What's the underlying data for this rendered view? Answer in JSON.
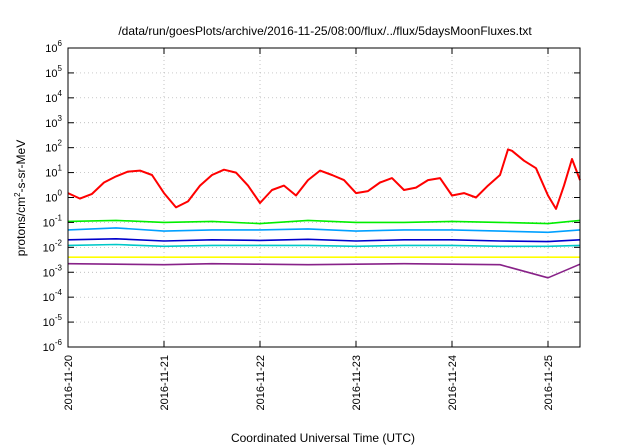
{
  "chart_data": {
    "type": "line",
    "title": "/data/run/goesPlots/archive/2016-11-25/08:00/flux/../flux/5daysMoonFluxes.txt",
    "xlabel": "Coordinated Universal Time (UTC)",
    "ylabel_base": "protons/cm",
    "ylabel_sup": "2",
    "ylabel_rest": "-s-sr-MeV",
    "yscale": "log",
    "ylim": [
      1e-06,
      1000000.0
    ],
    "y_ticks": [
      {
        "exp": "-6"
      },
      {
        "exp": "-5"
      },
      {
        "exp": "-4"
      },
      {
        "exp": "-3"
      },
      {
        "exp": "-2"
      },
      {
        "exp": "-1"
      },
      {
        "exp": "0"
      },
      {
        "exp": "1"
      },
      {
        "exp": "2"
      },
      {
        "exp": "3"
      },
      {
        "exp": "4"
      },
      {
        "exp": "5"
      },
      {
        "exp": "6"
      }
    ],
    "y_tick_base": "10",
    "xlim": [
      "2016-11-20T00:00",
      "2016-11-25T08:00"
    ],
    "x_ticks": [
      "2016-11-20",
      "2016-11-21",
      "2016-11-22",
      "2016-11-23",
      "2016-11-24",
      "2016-11-25"
    ],
    "grid": true,
    "series": [
      {
        "color": "#ff0000",
        "x": [
          "2016-11-20T00:00",
          "2016-11-20T03:00",
          "2016-11-20T06:00",
          "2016-11-20T09:00",
          "2016-11-20T12:00",
          "2016-11-20T15:00",
          "2016-11-20T18:00",
          "2016-11-20T21:00",
          "2016-11-21T00:00",
          "2016-11-21T03:00",
          "2016-11-21T06:00",
          "2016-11-21T09:00",
          "2016-11-21T12:00",
          "2016-11-21T15:00",
          "2016-11-21T18:00",
          "2016-11-21T21:00",
          "2016-11-22T00:00",
          "2016-11-22T03:00",
          "2016-11-22T06:00",
          "2016-11-22T09:00",
          "2016-11-22T12:00",
          "2016-11-22T15:00",
          "2016-11-22T18:00",
          "2016-11-22T21:00",
          "2016-11-23T00:00",
          "2016-11-23T03:00",
          "2016-11-23T06:00",
          "2016-11-23T09:00",
          "2016-11-23T12:00",
          "2016-11-23T15:00",
          "2016-11-23T18:00",
          "2016-11-23T21:00",
          "2016-11-24T00:00",
          "2016-11-24T03:00",
          "2016-11-24T06:00",
          "2016-11-24T09:00",
          "2016-11-24T12:00",
          "2016-11-24T14:00",
          "2016-11-24T15:00",
          "2016-11-24T18:00",
          "2016-11-24T21:00",
          "2016-11-25T00:00",
          "2016-11-25T02:00",
          "2016-11-25T04:00",
          "2016-11-25T06:00",
          "2016-11-25T08:00"
        ],
        "y": [
          1.5,
          0.9,
          1.4,
          4,
          7,
          11,
          12,
          8,
          1.5,
          0.4,
          0.7,
          3,
          8,
          13,
          10,
          3,
          0.6,
          2,
          3,
          1.2,
          5,
          12,
          8,
          5,
          1.5,
          1.8,
          4,
          6,
          2,
          2.5,
          5,
          6,
          1.2,
          1.5,
          1,
          3,
          8,
          85,
          75,
          30,
          15,
          1.2,
          0.35,
          3,
          35,
          5
        ]
      },
      {
        "color": "#00ee00",
        "x": [
          "2016-11-20T00:00",
          "2016-11-20T12:00",
          "2016-11-21T00:00",
          "2016-11-21T12:00",
          "2016-11-22T00:00",
          "2016-11-22T12:00",
          "2016-11-23T00:00",
          "2016-11-23T12:00",
          "2016-11-24T00:00",
          "2016-11-24T12:00",
          "2016-11-25T00:00",
          "2016-11-25T08:00"
        ],
        "y": [
          0.11,
          0.12,
          0.1,
          0.11,
          0.09,
          0.12,
          0.1,
          0.1,
          0.11,
          0.1,
          0.09,
          0.12
        ]
      },
      {
        "color": "#00a0ff",
        "x": [
          "2016-11-20T00:00",
          "2016-11-20T12:00",
          "2016-11-21T00:00",
          "2016-11-21T12:00",
          "2016-11-22T00:00",
          "2016-11-22T12:00",
          "2016-11-23T00:00",
          "2016-11-23T12:00",
          "2016-11-24T00:00",
          "2016-11-24T12:00",
          "2016-11-25T00:00",
          "2016-11-25T08:00"
        ],
        "y": [
          0.05,
          0.06,
          0.045,
          0.05,
          0.05,
          0.055,
          0.045,
          0.05,
          0.05,
          0.045,
          0.04,
          0.05
        ]
      },
      {
        "color": "#0000cc",
        "x": [
          "2016-11-20T00:00",
          "2016-11-20T12:00",
          "2016-11-21T00:00",
          "2016-11-21T12:00",
          "2016-11-22T00:00",
          "2016-11-22T12:00",
          "2016-11-23T00:00",
          "2016-11-23T12:00",
          "2016-11-24T00:00",
          "2016-11-24T12:00",
          "2016-11-25T00:00",
          "2016-11-25T08:00"
        ],
        "y": [
          0.02,
          0.022,
          0.018,
          0.02,
          0.019,
          0.021,
          0.018,
          0.02,
          0.02,
          0.018,
          0.017,
          0.02
        ]
      },
      {
        "color": "#00c8c8",
        "x": [
          "2016-11-20T00:00",
          "2016-11-20T12:00",
          "2016-11-21T00:00",
          "2016-11-21T12:00",
          "2016-11-22T00:00",
          "2016-11-22T12:00",
          "2016-11-23T00:00",
          "2016-11-23T12:00",
          "2016-11-24T00:00",
          "2016-11-24T12:00",
          "2016-11-25T00:00",
          "2016-11-25T08:00"
        ],
        "y": [
          0.012,
          0.013,
          0.011,
          0.012,
          0.012,
          0.012,
          0.011,
          0.012,
          0.012,
          0.011,
          0.011,
          0.012
        ]
      },
      {
        "color": "#ffff00",
        "x": [
          "2016-11-20T00:00",
          "2016-11-20T12:00",
          "2016-11-21T00:00",
          "2016-11-21T12:00",
          "2016-11-22T00:00",
          "2016-11-22T12:00",
          "2016-11-23T00:00",
          "2016-11-23T12:00",
          "2016-11-24T00:00",
          "2016-11-24T12:00",
          "2016-11-25T00:00",
          "2016-11-25T08:00"
        ],
        "y": [
          0.004,
          0.004,
          0.004,
          0.004,
          0.004,
          0.004,
          0.004,
          0.004,
          0.004,
          0.004,
          0.004,
          0.004
        ]
      },
      {
        "color": "#882288",
        "x": [
          "2016-11-20T00:00",
          "2016-11-20T12:00",
          "2016-11-21T00:00",
          "2016-11-21T12:00",
          "2016-11-22T00:00",
          "2016-11-22T12:00",
          "2016-11-23T00:00",
          "2016-11-23T12:00",
          "2016-11-24T00:00",
          "2016-11-24T12:00",
          "2016-11-25T00:00",
          "2016-11-25T08:00"
        ],
        "y": [
          0.0022,
          0.0021,
          0.002,
          0.0022,
          0.0021,
          0.002,
          0.0021,
          0.0022,
          0.0021,
          0.002,
          0.0006,
          0.0021
        ]
      }
    ]
  }
}
